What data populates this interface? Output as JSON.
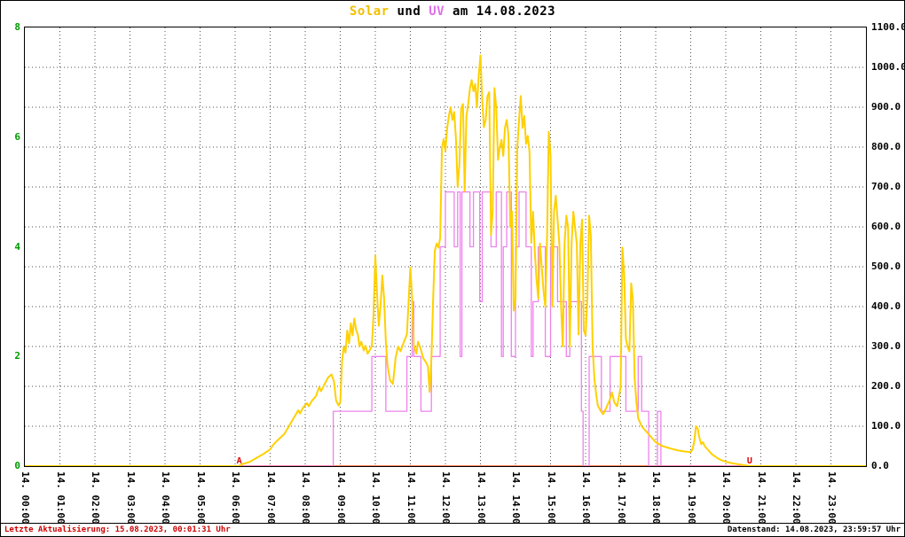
{
  "title": {
    "full": "Solar und UV am 14.08.2023",
    "parts": [
      {
        "text": "Solar",
        "color": "#f0c000"
      },
      {
        "text": " und ",
        "color": "#000000"
      },
      {
        "text": "UV",
        "color": "#e070e8"
      },
      {
        "text": " am 14.08.2023",
        "color": "#000000"
      }
    ]
  },
  "footer": {
    "left": "Letzte Aktualisierung: 15.08.2023, 00:01:31 Uhr",
    "left_color": "#cc0000",
    "right": "Datenstand: 14.08.2023, 23:59:57 Uhr",
    "right_color": "#000000"
  },
  "chart_data": {
    "type": "line",
    "title": "Solar und UV am 14.08.2023",
    "grid": {
      "color": "#505050",
      "style": "dotted"
    },
    "x_axis": {
      "range": [
        0,
        24
      ],
      "labels": [
        "14. 00:00",
        "14. 01:00",
        "14. 02:00",
        "14. 03:00",
        "14. 04:00",
        "14. 05:00",
        "14. 06:00",
        "14. 07:00",
        "14. 08:00",
        "14. 09:00",
        "14. 10:00",
        "14. 11:00",
        "14. 12:00",
        "14. 13:00",
        "14. 14:00",
        "14. 15:00",
        "14. 16:00",
        "14. 17:00",
        "14. 18:00",
        "14. 19:00",
        "14. 20:00",
        "14. 21:00",
        "14. 22:00",
        "14. 23:00"
      ]
    },
    "y_left": {
      "range": [
        0,
        8
      ],
      "ticks": [
        "0",
        "2",
        "4",
        "6",
        "8"
      ],
      "color": "#009900"
    },
    "y_right": {
      "range": [
        0,
        1100
      ],
      "ticks": [
        "0.0",
        "100.0",
        "200.0",
        "300.0",
        "400.0",
        "500.0",
        "600.0",
        "700.0",
        "800.0",
        "900.0",
        "1000.0",
        "1100.0"
      ],
      "color": "#000000"
    },
    "annotations": [
      {
        "text": "A",
        "x": 6.12,
        "color": "#dd0000"
      },
      {
        "text": "U",
        "x": 20.68,
        "color": "#dd0000"
      }
    ],
    "series": [
      {
        "name": "zero-baseline",
        "axis": "right",
        "color": "#ff8050",
        "type": "line",
        "width": 2,
        "points": [
          [
            0,
            0
          ],
          [
            24,
            0
          ]
        ]
      },
      {
        "name": "UV",
        "axis": "left",
        "color": "#ee82ee",
        "type": "step",
        "width": 1.3,
        "points": [
          [
            0,
            0
          ],
          [
            8.8,
            1
          ],
          [
            9.9,
            2
          ],
          [
            10.3,
            1
          ],
          [
            10.9,
            2
          ],
          [
            11.05,
            3
          ],
          [
            11.1,
            2
          ],
          [
            11.3,
            1
          ],
          [
            11.6,
            2
          ],
          [
            11.85,
            4
          ],
          [
            12.0,
            5
          ],
          [
            12.25,
            4
          ],
          [
            12.35,
            5
          ],
          [
            12.42,
            2
          ],
          [
            12.47,
            5
          ],
          [
            12.7,
            4
          ],
          [
            12.8,
            5
          ],
          [
            12.98,
            3
          ],
          [
            13.05,
            5
          ],
          [
            13.3,
            4
          ],
          [
            13.45,
            5
          ],
          [
            13.6,
            2
          ],
          [
            13.65,
            4
          ],
          [
            13.75,
            5
          ],
          [
            13.88,
            2
          ],
          [
            14.0,
            4
          ],
          [
            14.1,
            5
          ],
          [
            14.3,
            4
          ],
          [
            14.45,
            2
          ],
          [
            14.5,
            3
          ],
          [
            14.65,
            4
          ],
          [
            14.85,
            2
          ],
          [
            15.0,
            4
          ],
          [
            15.2,
            3
          ],
          [
            15.45,
            2
          ],
          [
            15.55,
            3
          ],
          [
            15.88,
            1
          ],
          [
            15.93,
            0
          ],
          [
            16.1,
            2
          ],
          [
            16.45,
            1
          ],
          [
            16.7,
            2
          ],
          [
            17.15,
            1
          ],
          [
            17.5,
            2
          ],
          [
            17.6,
            1
          ],
          [
            17.8,
            0
          ],
          [
            18.05,
            1
          ],
          [
            18.15,
            0
          ],
          [
            24,
            0
          ]
        ]
      },
      {
        "name": "Solar",
        "axis": "right",
        "color": "#ffd000",
        "type": "line",
        "width": 2,
        "points": [
          [
            0,
            0
          ],
          [
            6.1,
            0
          ],
          [
            6.2,
            5
          ],
          [
            6.4,
            10
          ],
          [
            6.6,
            20
          ],
          [
            6.8,
            30
          ],
          [
            7.0,
            42
          ],
          [
            7.1,
            55
          ],
          [
            7.25,
            68
          ],
          [
            7.4,
            80
          ],
          [
            7.5,
            95
          ],
          [
            7.6,
            110
          ],
          [
            7.7,
            125
          ],
          [
            7.8,
            140
          ],
          [
            7.85,
            132
          ],
          [
            7.95,
            148
          ],
          [
            8.05,
            158
          ],
          [
            8.1,
            150
          ],
          [
            8.2,
            165
          ],
          [
            8.3,
            175
          ],
          [
            8.4,
            198
          ],
          [
            8.45,
            188
          ],
          [
            8.55,
            205
          ],
          [
            8.65,
            222
          ],
          [
            8.75,
            230
          ],
          [
            8.82,
            212
          ],
          [
            8.88,
            165
          ],
          [
            8.95,
            152
          ],
          [
            9.0,
            160
          ],
          [
            9.05,
            262
          ],
          [
            9.1,
            300
          ],
          [
            9.15,
            285
          ],
          [
            9.2,
            340
          ],
          [
            9.25,
            308
          ],
          [
            9.3,
            358
          ],
          [
            9.35,
            328
          ],
          [
            9.4,
            370
          ],
          [
            9.45,
            342
          ],
          [
            9.5,
            330
          ],
          [
            9.55,
            300
          ],
          [
            9.6,
            312
          ],
          [
            9.67,
            290
          ],
          [
            9.72,
            302
          ],
          [
            9.78,
            282
          ],
          [
            9.85,
            292
          ],
          [
            9.9,
            302
          ],
          [
            9.95,
            380
          ],
          [
            10.0,
            528
          ],
          [
            10.05,
            430
          ],
          [
            10.1,
            352
          ],
          [
            10.15,
            402
          ],
          [
            10.2,
            478
          ],
          [
            10.25,
            420
          ],
          [
            10.3,
            310
          ],
          [
            10.35,
            252
          ],
          [
            10.42,
            215
          ],
          [
            10.5,
            206
          ],
          [
            10.58,
            272
          ],
          [
            10.65,
            300
          ],
          [
            10.72,
            288
          ],
          [
            10.8,
            308
          ],
          [
            10.9,
            330
          ],
          [
            11.0,
            498
          ],
          [
            11.05,
            420
          ],
          [
            11.1,
            302
          ],
          [
            11.17,
            282
          ],
          [
            11.22,
            312
          ],
          [
            11.3,
            292
          ],
          [
            11.37,
            270
          ],
          [
            11.45,
            260
          ],
          [
            11.5,
            250
          ],
          [
            11.55,
            186
          ],
          [
            11.6,
            268
          ],
          [
            11.65,
            420
          ],
          [
            11.7,
            540
          ],
          [
            11.75,
            558
          ],
          [
            11.8,
            548
          ],
          [
            11.85,
            572
          ],
          [
            11.9,
            798
          ],
          [
            11.95,
            820
          ],
          [
            12.0,
            790
          ],
          [
            12.05,
            848
          ],
          [
            12.1,
            878
          ],
          [
            12.15,
            900
          ],
          [
            12.2,
            868
          ],
          [
            12.25,
            888
          ],
          [
            12.3,
            820
          ],
          [
            12.35,
            700
          ],
          [
            12.4,
            758
          ],
          [
            12.45,
            898
          ],
          [
            12.5,
            908
          ],
          [
            12.55,
            690
          ],
          [
            12.6,
            878
          ],
          [
            12.65,
            908
          ],
          [
            12.7,
            948
          ],
          [
            12.75,
            968
          ],
          [
            12.8,
            940
          ],
          [
            12.85,
            958
          ],
          [
            12.9,
            900
          ],
          [
            12.95,
            978
          ],
          [
            13.0,
            1030
          ],
          [
            13.05,
            918
          ],
          [
            13.1,
            850
          ],
          [
            13.15,
            868
          ],
          [
            13.2,
            928
          ],
          [
            13.25,
            938
          ],
          [
            13.3,
            580
          ],
          [
            13.35,
            640
          ],
          [
            13.4,
            948
          ],
          [
            13.45,
            898
          ],
          [
            13.5,
            768
          ],
          [
            13.55,
            798
          ],
          [
            13.6,
            818
          ],
          [
            13.65,
            778
          ],
          [
            13.7,
            848
          ],
          [
            13.75,
            868
          ],
          [
            13.8,
            828
          ],
          [
            13.85,
            600
          ],
          [
            13.9,
            638
          ],
          [
            13.95,
            390
          ],
          [
            14.0,
            420
          ],
          [
            14.05,
            798
          ],
          [
            14.1,
            868
          ],
          [
            14.15,
            928
          ],
          [
            14.2,
            848
          ],
          [
            14.25,
            878
          ],
          [
            14.3,
            808
          ],
          [
            14.35,
            828
          ],
          [
            14.4,
            788
          ],
          [
            14.45,
            560
          ],
          [
            14.5,
            638
          ],
          [
            14.55,
            540
          ],
          [
            14.6,
            468
          ],
          [
            14.65,
            420
          ],
          [
            14.7,
            558
          ],
          [
            14.75,
            498
          ],
          [
            14.8,
            440
          ],
          [
            14.85,
            400
          ],
          [
            14.9,
            578
          ],
          [
            14.95,
            838
          ],
          [
            15.0,
            778
          ],
          [
            15.05,
            400
          ],
          [
            15.1,
            638
          ],
          [
            15.15,
            678
          ],
          [
            15.2,
            618
          ],
          [
            15.25,
            558
          ],
          [
            15.3,
            400
          ],
          [
            15.35,
            300
          ],
          [
            15.4,
            558
          ],
          [
            15.45,
            628
          ],
          [
            15.5,
            598
          ],
          [
            15.55,
            300
          ],
          [
            15.6,
            558
          ],
          [
            15.65,
            638
          ],
          [
            15.7,
            598
          ],
          [
            15.75,
            558
          ],
          [
            15.8,
            330
          ],
          [
            15.85,
            558
          ],
          [
            15.9,
            618
          ],
          [
            15.95,
            340
          ],
          [
            16.0,
            328
          ],
          [
            16.05,
            420
          ],
          [
            16.1,
            628
          ],
          [
            16.15,
            578
          ],
          [
            16.2,
            300
          ],
          [
            16.25,
            220
          ],
          [
            16.3,
            180
          ],
          [
            16.35,
            152
          ],
          [
            16.42,
            140
          ],
          [
            16.5,
            130
          ],
          [
            16.6,
            148
          ],
          [
            16.7,
            168
          ],
          [
            16.75,
            185
          ],
          [
            16.82,
            160
          ],
          [
            16.9,
            150
          ],
          [
            17.0,
            198
          ],
          [
            17.05,
            548
          ],
          [
            17.1,
            478
          ],
          [
            17.15,
            320
          ],
          [
            17.2,
            298
          ],
          [
            17.25,
            288
          ],
          [
            17.3,
            458
          ],
          [
            17.35,
            418
          ],
          [
            17.4,
            220
          ],
          [
            17.45,
            160
          ],
          [
            17.5,
            120
          ],
          [
            17.6,
            100
          ],
          [
            17.7,
            90
          ],
          [
            17.8,
            80
          ],
          [
            17.9,
            70
          ],
          [
            18.0,
            60
          ],
          [
            18.2,
            50
          ],
          [
            18.4,
            45
          ],
          [
            18.6,
            40
          ],
          [
            18.8,
            37
          ],
          [
            19.0,
            35
          ],
          [
            19.05,
            42
          ],
          [
            19.1,
            62
          ],
          [
            19.15,
            100
          ],
          [
            19.2,
            94
          ],
          [
            19.25,
            70
          ],
          [
            19.3,
            55
          ],
          [
            19.35,
            60
          ],
          [
            19.4,
            50
          ],
          [
            19.5,
            40
          ],
          [
            19.6,
            30
          ],
          [
            19.7,
            24
          ],
          [
            19.8,
            18
          ],
          [
            19.9,
            14
          ],
          [
            20.0,
            11
          ],
          [
            20.2,
            7
          ],
          [
            20.4,
            4
          ],
          [
            20.55,
            2
          ],
          [
            20.7,
            0
          ],
          [
            24,
            0
          ]
        ]
      }
    ]
  }
}
